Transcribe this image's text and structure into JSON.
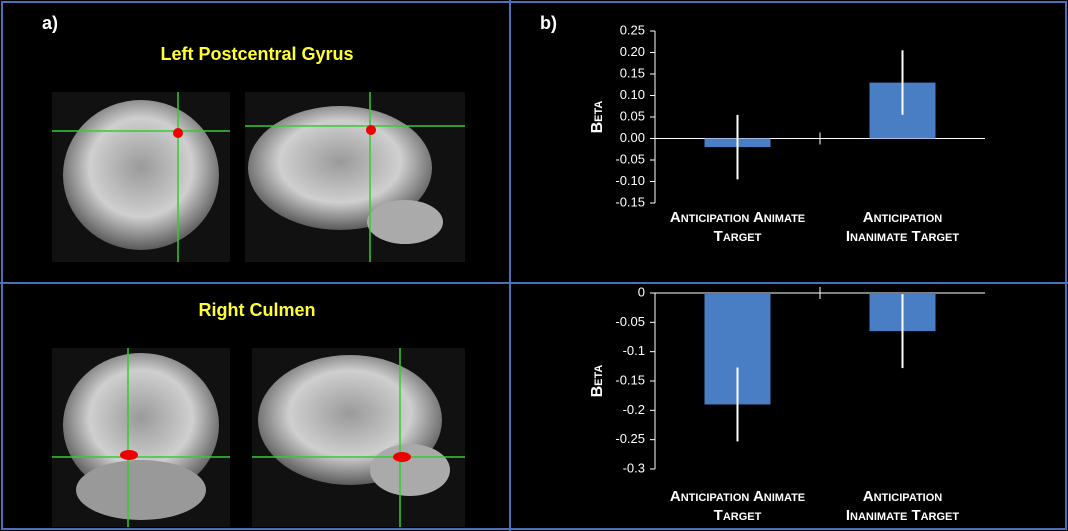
{
  "panel_labels": [
    "a)",
    "b)"
  ],
  "brain_titles": [
    "Left Postcentral Gyrus",
    "Right Culmen"
  ],
  "chart_data": [
    {
      "type": "bar",
      "ylabel": "Beta",
      "categories": [
        "Anticipation Animate Target",
        "Anticipation Inanimate Target"
      ],
      "values": [
        -0.02,
        0.13
      ],
      "errors": [
        0.075,
        0.075
      ],
      "color": "#4a7ec4",
      "ylim": [
        -0.15,
        0.25
      ],
      "yticks": [
        -0.15,
        {
          "value": -0.1,
          "label": "-0.10"
        },
        -0.05,
        {
          "value": 0,
          "label": "0.00"
        },
        0.05,
        {
          "value": 0.1,
          "label": "0.10"
        },
        0.15,
        {
          "value": 0.2,
          "label": "0.20"
        },
        0.25
      ]
    },
    {
      "type": "bar",
      "ylabel": "Beta",
      "categories": [
        "Anticipation Animate Target",
        "Anticipation Inanimate Target"
      ],
      "values": [
        -0.19,
        -0.065
      ],
      "errors": [
        0.063,
        0.063
      ],
      "color": "#4a7ec4",
      "ylim": [
        -0.3,
        0
      ],
      "yticks": [
        -0.3,
        -0.25,
        -0.2,
        -0.15,
        -0.1,
        -0.05,
        0
      ]
    }
  ]
}
